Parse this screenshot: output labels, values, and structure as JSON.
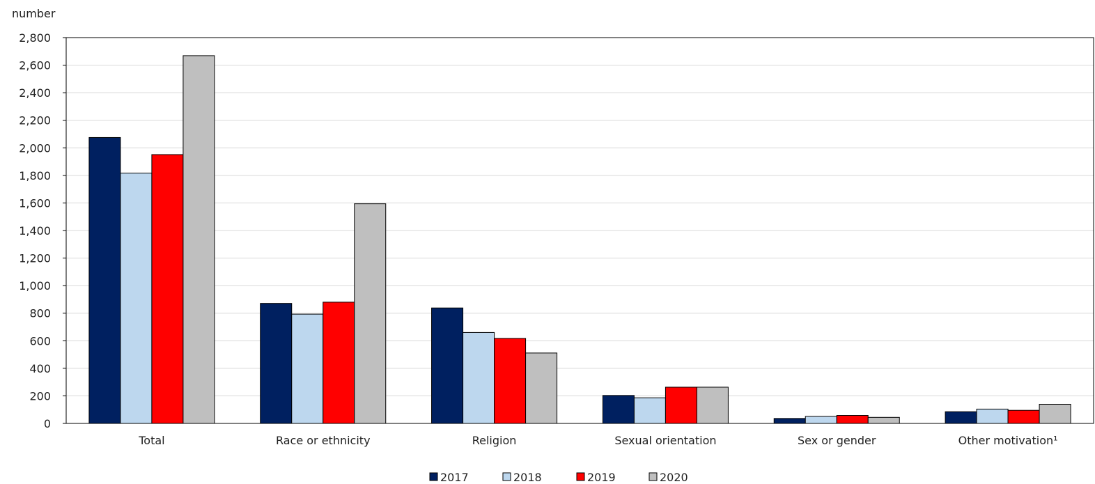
{
  "chart_data": {
    "type": "bar",
    "unit_label": "number",
    "categories": [
      "Total",
      "Race or ethnicity",
      "Religion",
      "Sexual orientation",
      "Sex or gender",
      "Other motivation¹"
    ],
    "series": [
      {
        "name": "2017",
        "color": "#002060",
        "values": [
          2075,
          871,
          838,
          203,
          36,
          85
        ]
      },
      {
        "name": "2018",
        "color": "#bdd7ee",
        "values": [
          1817,
          793,
          660,
          186,
          51,
          104
        ]
      },
      {
        "name": "2019",
        "color": "#ff0000",
        "values": [
          1951,
          880,
          617,
          263,
          58,
          95
        ]
      },
      {
        "name": "2020",
        "color": "#bfbfbf",
        "values": [
          2669,
          1594,
          511,
          263,
          44,
          139
        ]
      }
    ],
    "ylim": [
      0,
      2800
    ],
    "y_ticks": [
      "0",
      "200",
      "400",
      "600",
      "800",
      "1,000",
      "1,200",
      "1,400",
      "1,600",
      "1,800",
      "2,000",
      "2,200",
      "2,400",
      "2,600",
      "2,800"
    ],
    "grid": true,
    "legend_position": "bottom"
  }
}
